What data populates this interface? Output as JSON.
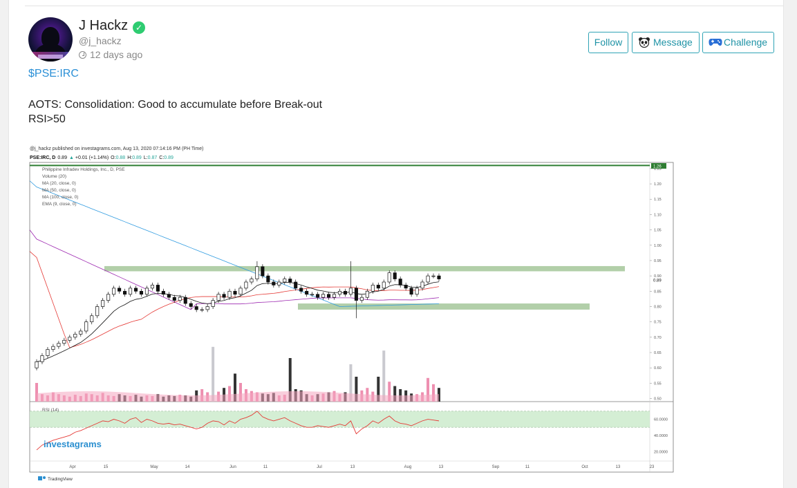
{
  "post": {
    "username": "J Hackz",
    "handle": "@j_hackz",
    "time_ago": "12 days ago",
    "ticker": "$PSE:IRC",
    "text_line1": "AOTS: Consolidation: Good to accumulate before Break-out",
    "text_line2": "RSI>50"
  },
  "actions": {
    "follow": "Follow",
    "message": "Message",
    "challenge": "Challenge"
  },
  "colors": {
    "accent": "#2fa3b5",
    "verified": "#2ecc71",
    "ticker": "#2a8fd6"
  },
  "icons": {
    "verified": "check-badge-icon",
    "time": "clock-icon",
    "message": "panda-icon",
    "challenge": "gamepad-icon"
  },
  "chart_image": {
    "published_line": "@j_hackz published on investagrams.com, Aug 13, 2020 07:14:16 PM (PH Time)",
    "symbol": "PSE:IRC, D",
    "last": "0.89",
    "change": "+0.01 (+1.14%)",
    "o": "0.88",
    "h": "0.89",
    "l": "0.87",
    "c": "0.89",
    "o_label": "O:",
    "h_label": "H:",
    "l_label": "L:",
    "c_label": "C:",
    "title": "Philippine Infradev Holdings, Inc., D, PSE",
    "indicators": [
      "Volume (20)",
      "MA (20, close, 0)",
      "MA (50, close, 0)",
      "MA (100, close, 0)",
      "EMA (9, close, 0)"
    ],
    "price_label_top": "1.26",
    "price_label_current": "0.89",
    "rsi_label": "RSI (14)",
    "watermark": "investagrams",
    "footer": "TradingView"
  },
  "chart_data": {
    "type": "candlestick",
    "price_ticks": [
      "1.25",
      "1.20",
      "1.15",
      "1.10",
      "1.05",
      "1.00",
      "0.95",
      "0.90",
      "0.85",
      "0.80",
      "0.75",
      "0.70",
      "0.65",
      "0.60",
      "0.55",
      "0.50"
    ],
    "rsi_ticks": [
      "60.0000",
      "40.0000",
      "20.0000"
    ],
    "x_ticks": [
      "Apr",
      "15",
      "May",
      "14",
      "Jun",
      "11",
      "Jul",
      "13",
      "Aug",
      "13",
      "Sep",
      "11",
      "Oct",
      "13",
      "23"
    ],
    "ylim": [
      0.49,
      1.27
    ],
    "resistance_line": 1.26,
    "supply_zone": [
      0.915,
      0.932
    ],
    "demand_zone": [
      0.79,
      0.81
    ],
    "close": [
      0.62,
      0.64,
      0.66,
      0.67,
      0.68,
      0.69,
      0.7,
      0.71,
      0.72,
      0.75,
      0.77,
      0.8,
      0.82,
      0.84,
      0.86,
      0.85,
      0.84,
      0.86,
      0.85,
      0.84,
      0.86,
      0.87,
      0.85,
      0.84,
      0.83,
      0.82,
      0.83,
      0.81,
      0.8,
      0.79,
      0.79,
      0.8,
      0.82,
      0.84,
      0.83,
      0.85,
      0.84,
      0.86,
      0.88,
      0.89,
      0.93,
      0.9,
      0.88,
      0.87,
      0.88,
      0.89,
      0.88,
      0.86,
      0.85,
      0.84,
      0.84,
      0.83,
      0.84,
      0.83,
      0.84,
      0.85,
      0.84,
      0.86,
      0.82,
      0.83,
      0.85,
      0.87,
      0.86,
      0.88,
      0.91,
      0.89,
      0.87,
      0.86,
      0.84,
      0.86,
      0.88,
      0.9,
      0.9,
      0.89
    ],
    "rsi": [
      22,
      28,
      31,
      34,
      36,
      38,
      40,
      44,
      46,
      49,
      52,
      55,
      58,
      57,
      60,
      58,
      55,
      60,
      62,
      56,
      60,
      58,
      55,
      54,
      55,
      53,
      54,
      52,
      50,
      48,
      50,
      55,
      58,
      57,
      53,
      58,
      55,
      60,
      62,
      65,
      70,
      63,
      60,
      58,
      60,
      62,
      58,
      55,
      52,
      50,
      50,
      52,
      51,
      50,
      52,
      54,
      52,
      58,
      42,
      48,
      52,
      58,
      55,
      60,
      64,
      58,
      55,
      54,
      52,
      55,
      58,
      60,
      59,
      58
    ],
    "volume": [
      0.3,
      0.12,
      0.1,
      0.15,
      0.12,
      0.1,
      0.08,
      0.11,
      0.09,
      0.13,
      0.12,
      0.1,
      0.14,
      0.1,
      0.09,
      0.12,
      0.1,
      0.09,
      0.11,
      0.08,
      0.1,
      0.09,
      0.12,
      0.08,
      0.1,
      0.09,
      0.11,
      0.1,
      0.08,
      0.18,
      0.2,
      0.15,
      0.88,
      0.16,
      0.22,
      0.25,
      0.45,
      0.3,
      0.2,
      0.17,
      0.15,
      0.13,
      0.12,
      0.14,
      0.1,
      0.11,
      0.7,
      0.2,
      0.18,
      0.12,
      0.1,
      0.12,
      0.13,
      0.15,
      0.17,
      0.12,
      0.15,
      0.6,
      0.4,
      0.18,
      0.22,
      0.16,
      0.4,
      0.82,
      0.32,
      0.25,
      0.2,
      0.18,
      0.13,
      0.12,
      0.15,
      0.38,
      0.28,
      0.22
    ]
  }
}
